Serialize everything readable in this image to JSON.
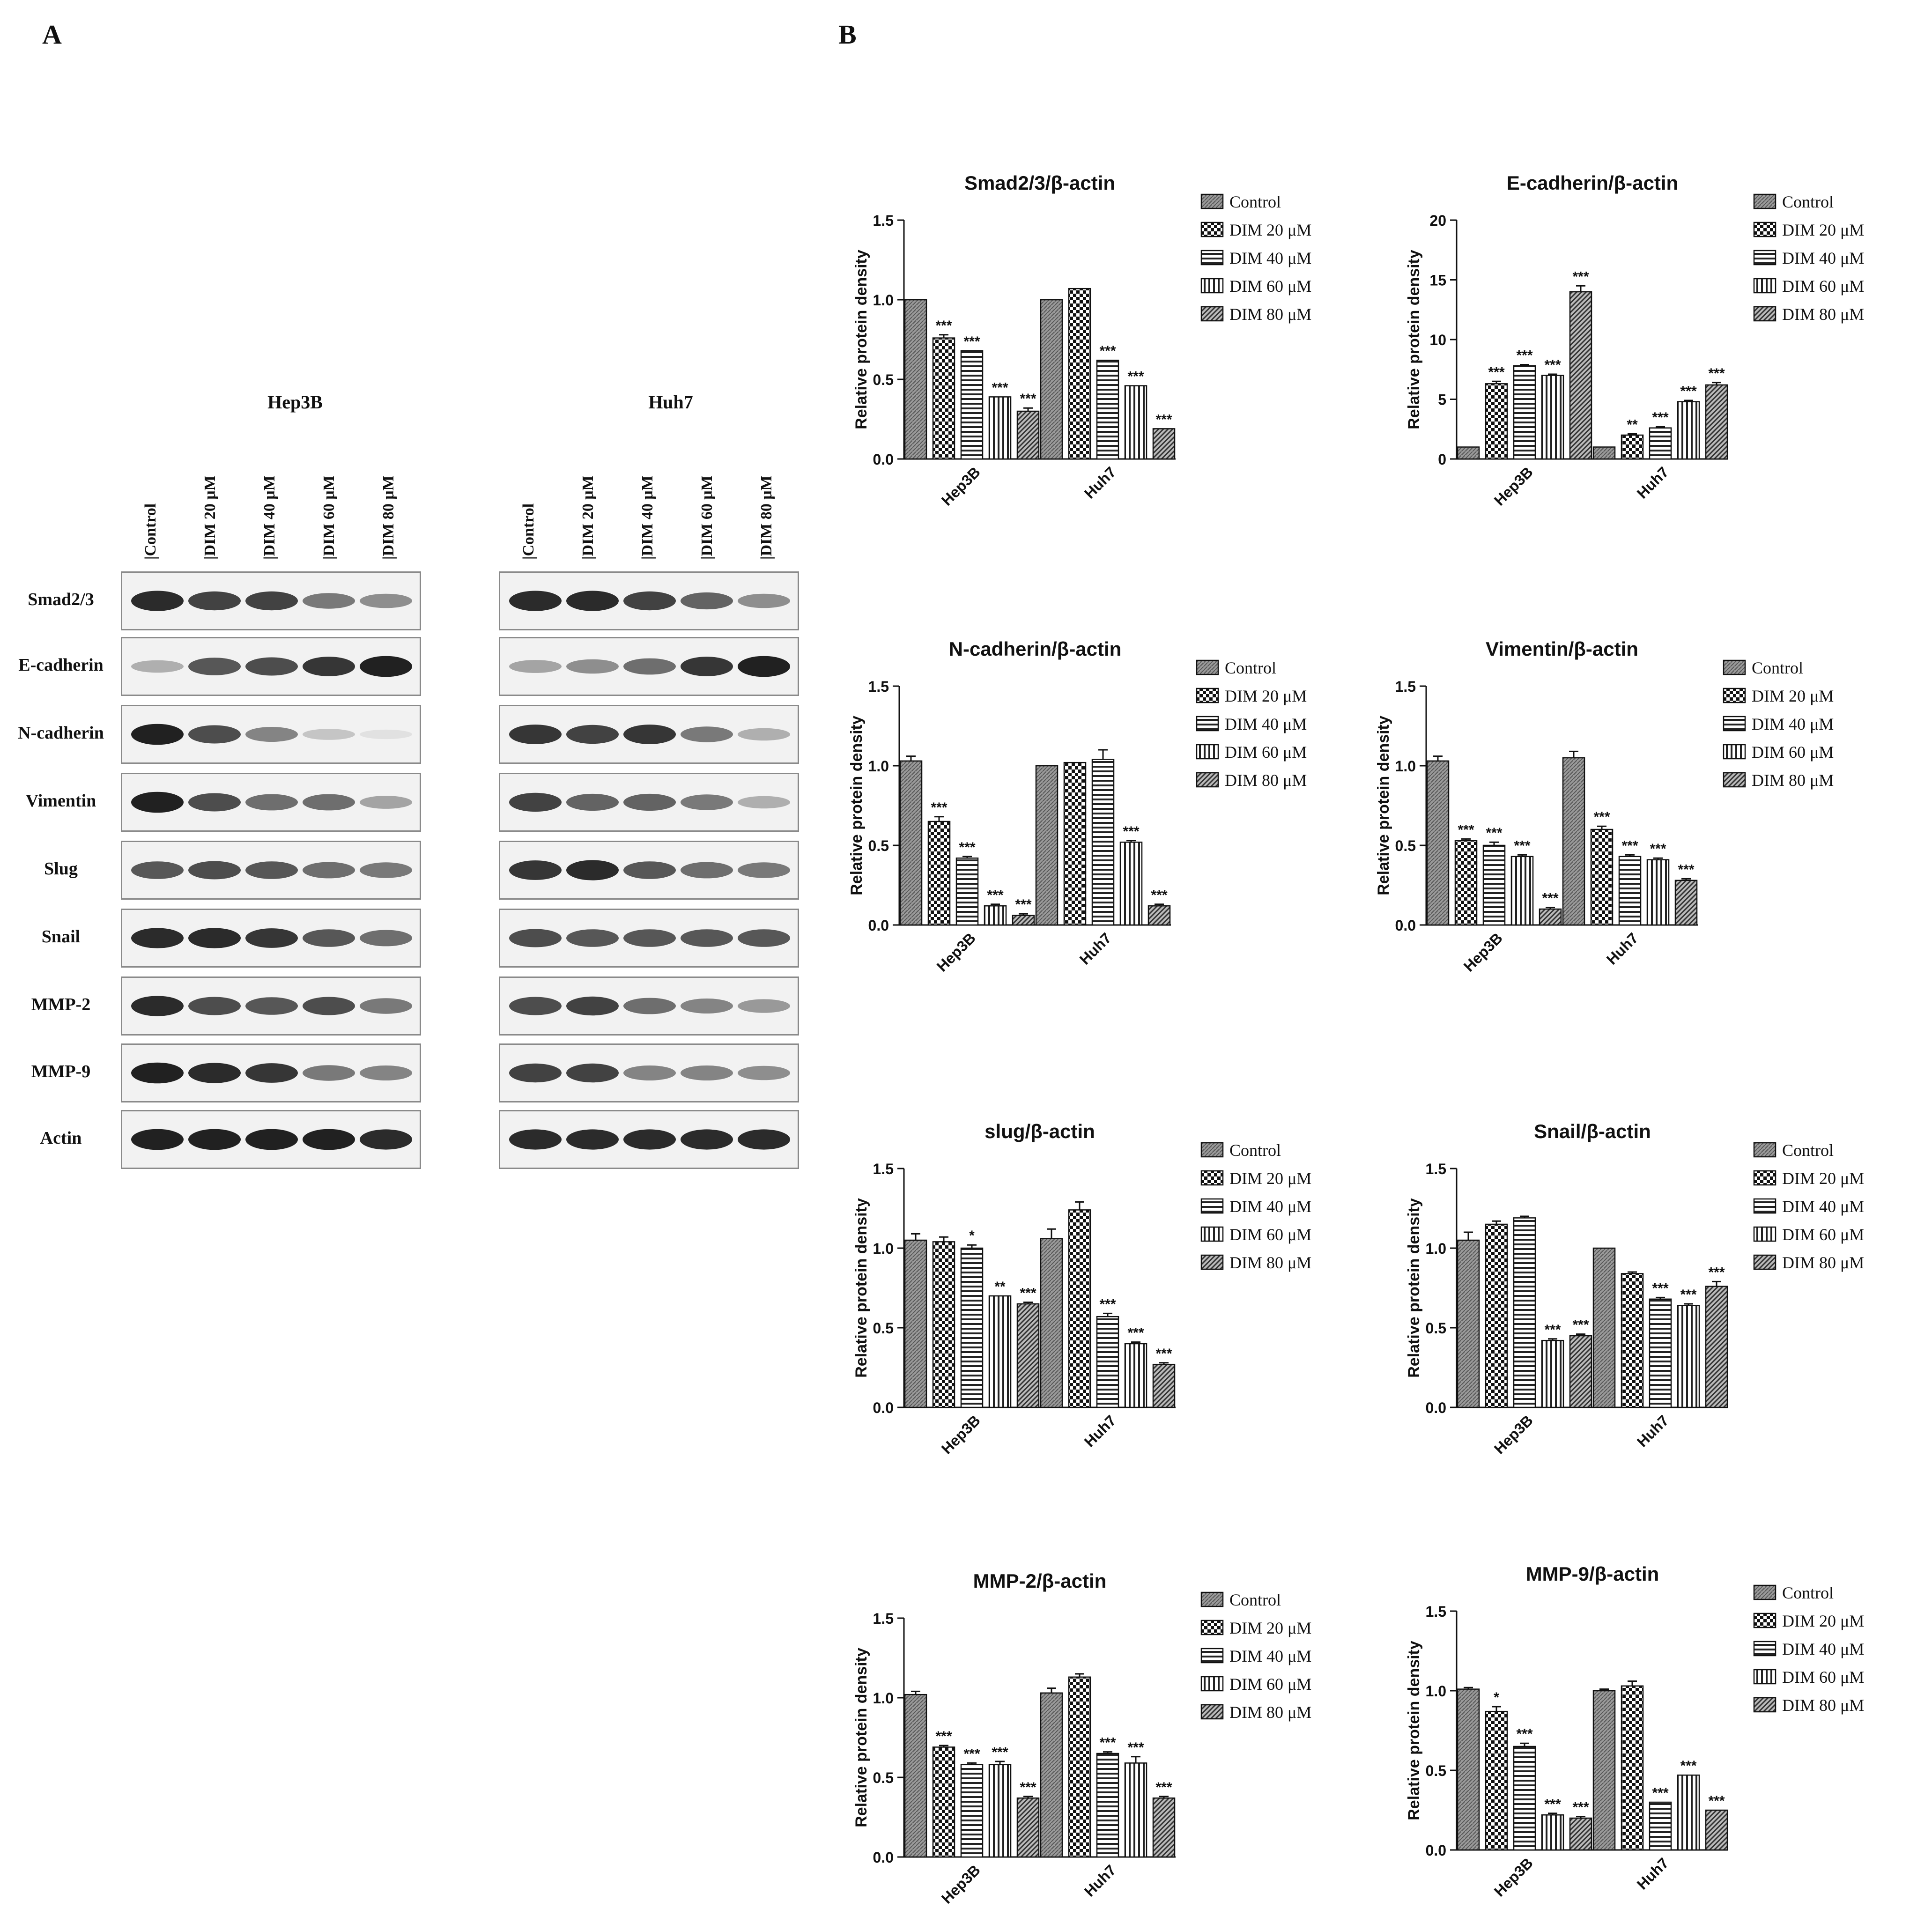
{
  "panels": {
    "a": "A",
    "b": "B"
  },
  "blot": {
    "cell_lines": [
      "Hep3B",
      "Huh7"
    ],
    "lanes": [
      "Control",
      "DIM 20 μM",
      "DIM 40 μM",
      "DIM 60 μM",
      "DIM 80 μM"
    ],
    "rows": [
      "Smad2/3",
      "E-cadherin",
      "N-cadherin",
      "Vimentin",
      "Slug",
      "Snail",
      "MMP-2",
      "MMP-9",
      "Actin"
    ],
    "band_intensity": [
      [
        [
          0.9,
          0.8,
          0.8,
          0.55,
          0.45
        ],
        [
          0.9,
          0.9,
          0.8,
          0.65,
          0.45
        ]
      ],
      [
        [
          0.3,
          0.7,
          0.75,
          0.85,
          0.95
        ],
        [
          0.35,
          0.45,
          0.6,
          0.85,
          0.95
        ]
      ],
      [
        [
          0.95,
          0.75,
          0.5,
          0.2,
          0.08
        ],
        [
          0.85,
          0.8,
          0.85,
          0.55,
          0.3
        ]
      ],
      [
        [
          0.95,
          0.75,
          0.6,
          0.6,
          0.35
        ],
        [
          0.8,
          0.65,
          0.65,
          0.55,
          0.3
        ]
      ],
      [
        [
          0.7,
          0.75,
          0.7,
          0.6,
          0.55
        ],
        [
          0.85,
          0.9,
          0.7,
          0.6,
          0.55
        ]
      ],
      [
        [
          0.9,
          0.9,
          0.85,
          0.7,
          0.6
        ],
        [
          0.75,
          0.7,
          0.7,
          0.7,
          0.7
        ]
      ],
      [
        [
          0.9,
          0.75,
          0.7,
          0.75,
          0.55
        ],
        [
          0.75,
          0.8,
          0.6,
          0.5,
          0.4
        ]
      ],
      [
        [
          0.95,
          0.9,
          0.85,
          0.55,
          0.5
        ],
        [
          0.8,
          0.8,
          0.5,
          0.5,
          0.45
        ]
      ],
      [
        [
          0.95,
          0.95,
          0.95,
          0.95,
          0.9
        ],
        [
          0.9,
          0.9,
          0.9,
          0.9,
          0.9
        ]
      ]
    ]
  },
  "colors": {
    "bar_fill": "#8a8a8a",
    "axis": "#111111",
    "band": "#151515"
  },
  "chart_data": [
    {
      "type": "bar",
      "title": "Smad2/3/β-actin",
      "ylabel": "Relative protein density",
      "ylim": [
        0,
        1.5
      ],
      "yticks": [
        "0.0",
        "0.5",
        "1.0",
        "1.5"
      ],
      "categories": [
        "Hep3B",
        "Huh7"
      ],
      "legend_position": "right",
      "series": [
        {
          "name": "Control",
          "values": [
            1.0,
            1.0
          ],
          "errors": [
            0,
            0
          ],
          "sig": [
            "",
            ""
          ]
        },
        {
          "name": "DIM 20 μM",
          "values": [
            0.76,
            1.07
          ],
          "errors": [
            0.02,
            0
          ],
          "sig": [
            "***",
            ""
          ]
        },
        {
          "name": "DIM 40 μM",
          "values": [
            0.68,
            0.62
          ],
          "errors": [
            0,
            0
          ],
          "sig": [
            "***",
            "***"
          ]
        },
        {
          "name": "DIM 60 μM",
          "values": [
            0.39,
            0.46
          ],
          "errors": [
            0,
            0
          ],
          "sig": [
            "***",
            "***"
          ]
        },
        {
          "name": "DIM 80 μM",
          "values": [
            0.3,
            0.19
          ],
          "errors": [
            0.02,
            0
          ],
          "sig": [
            "***",
            "***"
          ]
        }
      ]
    },
    {
      "type": "bar",
      "title": "E-cadherin/β-actin",
      "ylabel": "Relative protein density",
      "ylim": [
        0,
        20
      ],
      "yticks": [
        "0",
        "5",
        "10",
        "15",
        "20"
      ],
      "categories": [
        "Hep3B",
        "Huh7"
      ],
      "legend_position": "right",
      "series": [
        {
          "name": "Control",
          "values": [
            1.0,
            1.0
          ],
          "errors": [
            0,
            0
          ],
          "sig": [
            "",
            ""
          ]
        },
        {
          "name": "DIM 20 μM",
          "values": [
            6.3,
            2.0
          ],
          "errors": [
            0.2,
            0.1
          ],
          "sig": [
            "***",
            "**"
          ]
        },
        {
          "name": "DIM 40 μM",
          "values": [
            7.8,
            2.6
          ],
          "errors": [
            0.1,
            0.1
          ],
          "sig": [
            "***",
            "***"
          ]
        },
        {
          "name": "DIM 60 μM",
          "values": [
            7.0,
            4.8
          ],
          "errors": [
            0.1,
            0.1
          ],
          "sig": [
            "***",
            "***"
          ]
        },
        {
          "name": "DIM 80 μM",
          "values": [
            14.0,
            6.2
          ],
          "errors": [
            0.5,
            0.2
          ],
          "sig": [
            "***",
            "***"
          ]
        }
      ]
    },
    {
      "type": "bar",
      "title": "N-cadherin/β-actin",
      "ylabel": "Relative protein density",
      "ylim": [
        0,
        1.5
      ],
      "yticks": [
        "0.0",
        "0.5",
        "1.0",
        "1.5"
      ],
      "categories": [
        "Hep3B",
        "Huh7"
      ],
      "legend_position": "right",
      "series": [
        {
          "name": "Control",
          "values": [
            1.03,
            1.0
          ],
          "errors": [
            0.03,
            0
          ],
          "sig": [
            "",
            ""
          ]
        },
        {
          "name": "DIM 20 μM",
          "values": [
            0.65,
            1.02
          ],
          "errors": [
            0.03,
            0
          ],
          "sig": [
            "***",
            ""
          ]
        },
        {
          "name": "DIM 40 μM",
          "values": [
            0.42,
            1.04
          ],
          "errors": [
            0.01,
            0.06
          ],
          "sig": [
            "***",
            ""
          ]
        },
        {
          "name": "DIM 60 μM",
          "values": [
            0.12,
            0.52
          ],
          "errors": [
            0.01,
            0.01
          ],
          "sig": [
            "***",
            "***"
          ]
        },
        {
          "name": "DIM 80 μM",
          "values": [
            0.06,
            0.12
          ],
          "errors": [
            0.01,
            0.01
          ],
          "sig": [
            "***",
            "***"
          ]
        }
      ]
    },
    {
      "type": "bar",
      "title": "Vimentin/β-actin",
      "ylabel": "Relative protein density",
      "ylim": [
        0,
        1.5
      ],
      "yticks": [
        "0.0",
        "0.5",
        "1.0",
        "1.5"
      ],
      "categories": [
        "Hep3B",
        "Huh7"
      ],
      "legend_position": "right",
      "series": [
        {
          "name": "Control",
          "values": [
            1.03,
            1.05
          ],
          "errors": [
            0.03,
            0.04
          ],
          "sig": [
            "",
            ""
          ]
        },
        {
          "name": "DIM 20 μM",
          "values": [
            0.53,
            0.6
          ],
          "errors": [
            0.01,
            0.02
          ],
          "sig": [
            "***",
            "***"
          ]
        },
        {
          "name": "DIM 40 μM",
          "values": [
            0.5,
            0.43
          ],
          "errors": [
            0.02,
            0.01
          ],
          "sig": [
            "***",
            "***"
          ]
        },
        {
          "name": "DIM 60 μM",
          "values": [
            0.43,
            0.41
          ],
          "errors": [
            0.01,
            0.01
          ],
          "sig": [
            "***",
            "***"
          ]
        },
        {
          "name": "DIM 80 μM",
          "values": [
            0.1,
            0.28
          ],
          "errors": [
            0.01,
            0.01
          ],
          "sig": [
            "***",
            "***"
          ]
        }
      ]
    },
    {
      "type": "bar",
      "title": "slug/β-actin",
      "ylabel": "Relative protein density",
      "ylim": [
        0,
        1.5
      ],
      "yticks": [
        "0.0",
        "0.5",
        "1.0",
        "1.5"
      ],
      "categories": [
        "Hep3B",
        "Huh7"
      ],
      "legend_position": "right",
      "series": [
        {
          "name": "Control",
          "values": [
            1.05,
            1.06
          ],
          "errors": [
            0.04,
            0.06
          ],
          "sig": [
            "",
            ""
          ]
        },
        {
          "name": "DIM 20 μM",
          "values": [
            1.04,
            1.24
          ],
          "errors": [
            0.03,
            0.05
          ],
          "sig": [
            "",
            ""
          ]
        },
        {
          "name": "DIM 40 μM",
          "values": [
            1.0,
            0.57
          ],
          "errors": [
            0.02,
            0.02
          ],
          "sig": [
            "*",
            "***"
          ]
        },
        {
          "name": "DIM 60 μM",
          "values": [
            0.7,
            0.4
          ],
          "errors": [
            0,
            0.01
          ],
          "sig": [
            "**",
            "***"
          ]
        },
        {
          "name": "DIM 80 μM",
          "values": [
            0.65,
            0.27
          ],
          "errors": [
            0.01,
            0.01
          ],
          "sig": [
            "***",
            "***"
          ]
        }
      ]
    },
    {
      "type": "bar",
      "title": "Snail/β-actin",
      "ylabel": "Relative protein density",
      "ylim": [
        0,
        1.5
      ],
      "yticks": [
        "0.0",
        "0.5",
        "1.0",
        "1.5"
      ],
      "categories": [
        "Hep3B",
        "Huh7"
      ],
      "legend_position": "right",
      "series": [
        {
          "name": "Control",
          "values": [
            1.05,
            1.0
          ],
          "errors": [
            0.05,
            0
          ],
          "sig": [
            "",
            ""
          ]
        },
        {
          "name": "DIM 20 μM",
          "values": [
            1.15,
            0.84
          ],
          "errors": [
            0.02,
            0.01
          ],
          "sig": [
            "",
            ""
          ]
        },
        {
          "name": "DIM 40 μM",
          "values": [
            1.19,
            0.68
          ],
          "errors": [
            0.01,
            0.01
          ],
          "sig": [
            "",
            "***"
          ]
        },
        {
          "name": "DIM 60 μM",
          "values": [
            0.42,
            0.64
          ],
          "errors": [
            0.01,
            0.01
          ],
          "sig": [
            "***",
            "***"
          ]
        },
        {
          "name": "DIM 80 μM",
          "values": [
            0.45,
            0.76
          ],
          "errors": [
            0.01,
            0.03
          ],
          "sig": [
            "***",
            "***"
          ]
        }
      ]
    },
    {
      "type": "bar",
      "title": "MMP-2/β-actin",
      "ylabel": "Relative protein density",
      "ylim": [
        0,
        1.5
      ],
      "yticks": [
        "0.0",
        "0.5",
        "1.0",
        "1.5"
      ],
      "categories": [
        "Hep3B",
        "Huh7"
      ],
      "legend_position": "right",
      "series": [
        {
          "name": "Control",
          "values": [
            1.02,
            1.03
          ],
          "errors": [
            0.02,
            0.03
          ],
          "sig": [
            "",
            ""
          ]
        },
        {
          "name": "DIM 20 μM",
          "values": [
            0.69,
            1.13
          ],
          "errors": [
            0.01,
            0.02
          ],
          "sig": [
            "***",
            ""
          ]
        },
        {
          "name": "DIM 40 μM",
          "values": [
            0.58,
            0.65
          ],
          "errors": [
            0.01,
            0.01
          ],
          "sig": [
            "***",
            "***"
          ]
        },
        {
          "name": "DIM 60 μM",
          "values": [
            0.58,
            0.59
          ],
          "errors": [
            0.02,
            0.04
          ],
          "sig": [
            "***",
            "***"
          ]
        },
        {
          "name": "DIM 80 μM",
          "values": [
            0.37,
            0.37
          ],
          "errors": [
            0.01,
            0.01
          ],
          "sig": [
            "***",
            "***"
          ]
        }
      ]
    },
    {
      "type": "bar",
      "title": "MMP-9/β-actin",
      "ylabel": "Relative protein density",
      "ylim": [
        0,
        1.5
      ],
      "yticks": [
        "0.0",
        "0.5",
        "1.0",
        "1.5"
      ],
      "categories": [
        "Hep3B",
        "Huh7"
      ],
      "legend_position": "right",
      "series": [
        {
          "name": "Control",
          "values": [
            1.01,
            1.0
          ],
          "errors": [
            0.01,
            0.01
          ],
          "sig": [
            "",
            ""
          ]
        },
        {
          "name": "DIM 20 μM",
          "values": [
            0.87,
            1.03
          ],
          "errors": [
            0.03,
            0.03
          ],
          "sig": [
            "*",
            ""
          ]
        },
        {
          "name": "DIM 40 μM",
          "values": [
            0.65,
            0.3
          ],
          "errors": [
            0.02,
            0
          ],
          "sig": [
            "***",
            "***"
          ]
        },
        {
          "name": "DIM 60 μM",
          "values": [
            0.22,
            0.47
          ],
          "errors": [
            0.01,
            0
          ],
          "sig": [
            "***",
            "***"
          ]
        },
        {
          "name": "DIM 80 μM",
          "values": [
            0.2,
            0.25
          ],
          "errors": [
            0.01,
            0
          ],
          "sig": [
            "***",
            "***"
          ]
        }
      ]
    }
  ]
}
